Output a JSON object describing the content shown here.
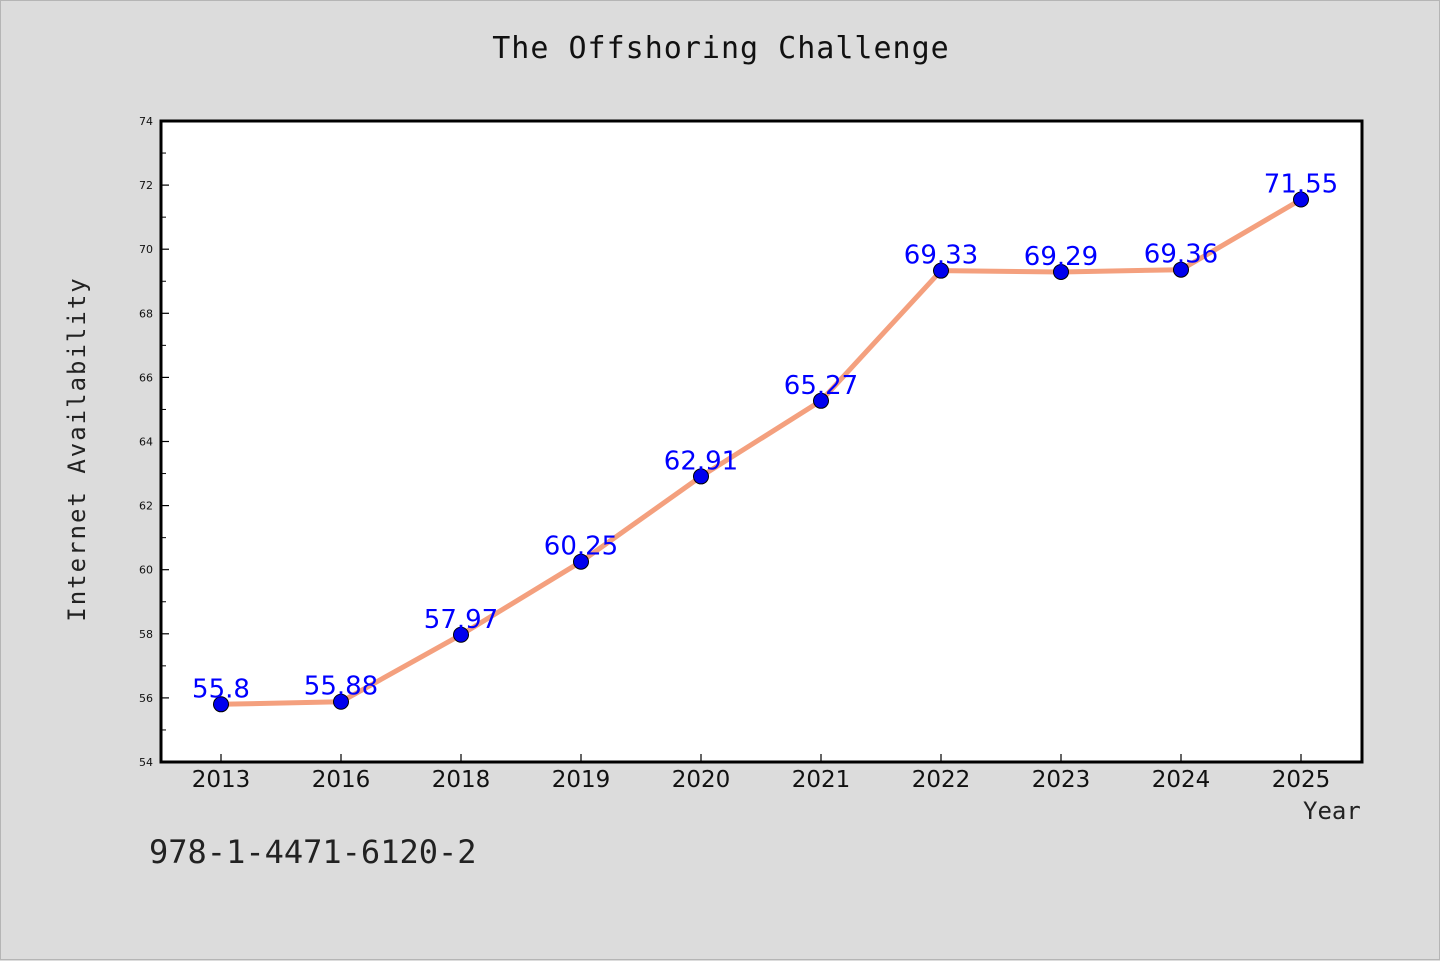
{
  "chart": {
    "title": "The Offshoring Challenge",
    "ylabel": "Internet Availability",
    "xlabel": "Year",
    "annotation": "978-1-4471-6120-2"
  },
  "chart_data": {
    "type": "line",
    "title": "The Offshoring Challenge",
    "xlabel": "Year",
    "ylabel": "Internet Availability",
    "categories": [
      "2013",
      "2016",
      "2018",
      "2019",
      "2020",
      "2021",
      "2022",
      "2023",
      "2024",
      "2025"
    ],
    "series": [
      {
        "values": [
          55.8,
          55.88,
          57.97,
          60.25,
          62.91,
          65.27,
          69.33,
          69.29,
          69.36,
          71.55
        ],
        "labels": [
          "55.8",
          "55.88",
          "57.97",
          "60.25",
          "62.91",
          "65.27",
          "69.33",
          "69.29",
          "69.36",
          "71.55"
        ],
        "line_color": "#f4a07e",
        "marker_color": "#0000ee"
      }
    ],
    "ylim": [
      54,
      74
    ],
    "yticks": [
      "54",
      "56",
      "58",
      "60",
      "62",
      "64",
      "66",
      "68",
      "70",
      "72",
      "74"
    ],
    "grid": false,
    "legend": "none",
    "label_color": "#0000ff"
  },
  "colors": {
    "background": "#dcdcdc",
    "plot_area": "#ffffff"
  }
}
